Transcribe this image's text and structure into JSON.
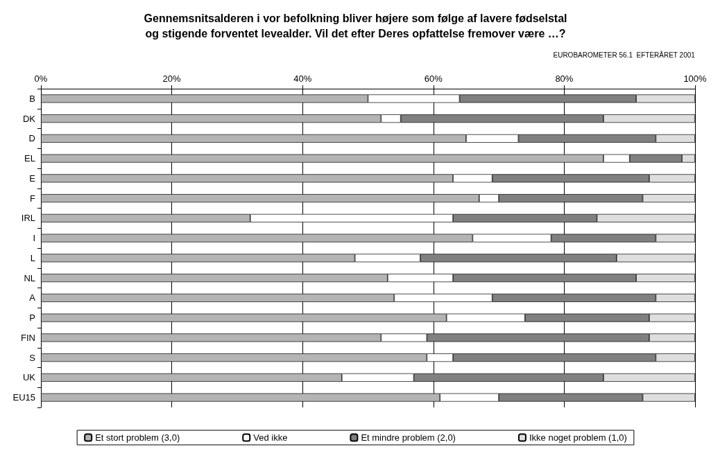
{
  "chart_data": {
    "type": "bar",
    "orientation": "horizontal",
    "stacked": true,
    "title": "Gennemsnitsalderen i vor befolkning bliver højere som følge af lavere fødselstal\nog stigende forventet levealder. Vil det efter Deres opfattelse fremover være …?",
    "annotations": [
      "EUROBAROMETER 56.1  EFTERÅRET 2001"
    ],
    "categories": [
      "B",
      "DK",
      "D",
      "EL",
      "E",
      "F",
      "IRL",
      "I",
      "L",
      "NL",
      "A",
      "P",
      "FIN",
      "S",
      "UK",
      "EU15"
    ],
    "series": [
      {
        "name": "Et stort problem (3,0)",
        "color": "#b4b4b4",
        "values": [
          50,
          52,
          65,
          86,
          63,
          67,
          32,
          66,
          48,
          53,
          54,
          62,
          52,
          59,
          46,
          61
        ]
      },
      {
        "name": "Ved ikke",
        "color": "#ffffff",
        "values": [
          14,
          3,
          8,
          4,
          6,
          3,
          31,
          12,
          10,
          10,
          15,
          12,
          7,
          4,
          11,
          9
        ]
      },
      {
        "name": "Et mindre problem (2,0)",
        "color": "#808080",
        "values": [
          27,
          31,
          21,
          8,
          24,
          22,
          22,
          16,
          30,
          28,
          25,
          19,
          34,
          31,
          29,
          22
        ]
      },
      {
        "name": "Ikke noget problem (1,0)",
        "color": "#dedede",
        "values": [
          9,
          14,
          6,
          2,
          7,
          8,
          15,
          6,
          12,
          9,
          6,
          7,
          7,
          6,
          14,
          8
        ]
      }
    ],
    "xlim": [
      0,
      100
    ],
    "xticks": [
      {
        "value": 0,
        "label": "0%"
      },
      {
        "value": 20,
        "label": "20%"
      },
      {
        "value": 40,
        "label": "40%"
      },
      {
        "value": 60,
        "label": "60%"
      },
      {
        "value": 80,
        "label": "80%"
      },
      {
        "value": 100,
        "label": "100%"
      }
    ],
    "grid": "x",
    "legend": "bottom"
  }
}
